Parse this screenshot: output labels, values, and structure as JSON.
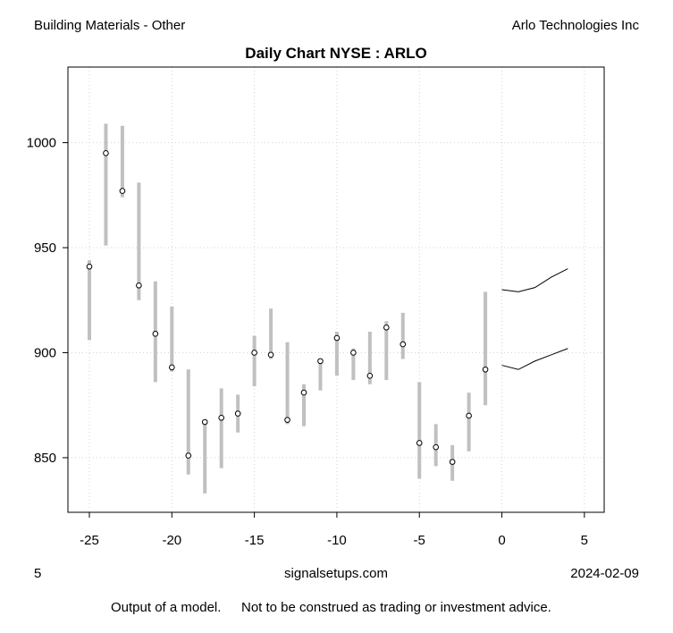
{
  "header": {
    "left": "Building Materials - Other",
    "right": "Arlo Technologies Inc"
  },
  "footer": {
    "left": "5",
    "center": "signalsetups.com",
    "right": "2024-02-09",
    "disclaimer_a": "Output of a model.",
    "disclaimer_b": "Not to be construed as trading or investment advice."
  },
  "chart_data": {
    "type": "line",
    "title": "Daily Chart NYSE : ARLO",
    "xlabel": "",
    "ylabel": "",
    "xlim": [
      -26.3,
      6.2
    ],
    "ylim": [
      824,
      1036
    ],
    "x_ticks": [
      -25,
      -20,
      -15,
      -10,
      -5,
      0,
      5
    ],
    "y_ticks": [
      850,
      900,
      950,
      1000
    ],
    "grid": true,
    "colors": {
      "range_bar": "#c0c0c0",
      "close_marker": "#000000",
      "forecast": "#000000",
      "grid": "#d3d3d3"
    },
    "bars": [
      {
        "x": -25,
        "low": 906,
        "high": 944,
        "close": 941
      },
      {
        "x": -24,
        "low": 951,
        "high": 1009,
        "close": 995
      },
      {
        "x": -23,
        "low": 974,
        "high": 1008,
        "close": 977
      },
      {
        "x": -22,
        "low": 925,
        "high": 981,
        "close": 932
      },
      {
        "x": -21,
        "low": 886,
        "high": 934,
        "close": 909
      },
      {
        "x": -20,
        "low": 891,
        "high": 922,
        "close": 893
      },
      {
        "x": -19,
        "low": 842,
        "high": 892,
        "close": 851
      },
      {
        "x": -18,
        "low": 833,
        "high": 868,
        "close": 867
      },
      {
        "x": -17,
        "low": 845,
        "high": 883,
        "close": 869
      },
      {
        "x": -16,
        "low": 862,
        "high": 880,
        "close": 871
      },
      {
        "x": -15,
        "low": 884,
        "high": 908,
        "close": 900
      },
      {
        "x": -14,
        "low": 897,
        "high": 921,
        "close": 899
      },
      {
        "x": -13,
        "low": 866,
        "high": 905,
        "close": 868
      },
      {
        "x": -12,
        "low": 865,
        "high": 885,
        "close": 881
      },
      {
        "x": -11,
        "low": 882,
        "high": 897,
        "close": 896
      },
      {
        "x": -10,
        "low": 889,
        "high": 910,
        "close": 907
      },
      {
        "x": -9,
        "low": 887,
        "high": 902,
        "close": 900
      },
      {
        "x": -8,
        "low": 885,
        "high": 910,
        "close": 889
      },
      {
        "x": -7,
        "low": 887,
        "high": 915,
        "close": 912
      },
      {
        "x": -6,
        "low": 897,
        "high": 919,
        "close": 904
      },
      {
        "x": -5,
        "low": 840,
        "high": 886,
        "close": 857
      },
      {
        "x": -4,
        "low": 846,
        "high": 866,
        "close": 855
      },
      {
        "x": -3,
        "low": 839,
        "high": 856,
        "close": 848
      },
      {
        "x": -2,
        "low": 853,
        "high": 881,
        "close": 870
      },
      {
        "x": -1,
        "low": 875,
        "high": 929,
        "close": 892
      }
    ],
    "series": [
      {
        "x": [
          0,
          1,
          2,
          3,
          4
        ],
        "values": [
          930,
          929,
          931,
          936,
          940
        ]
      },
      {
        "x": [
          0,
          1,
          2,
          3,
          4
        ],
        "values": [
          894,
          892,
          896,
          899,
          902
        ]
      }
    ]
  }
}
